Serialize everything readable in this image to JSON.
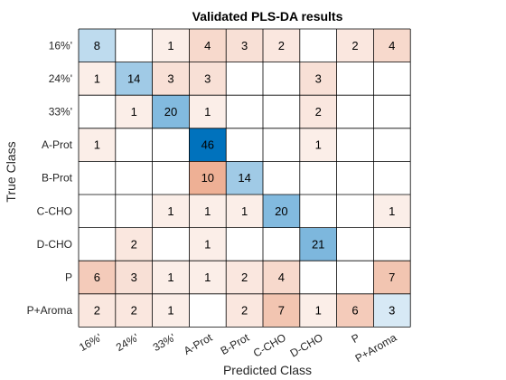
{
  "chart_data": {
    "type": "heatmap",
    "title": "Validated PLS-DA results",
    "xlabel": "Predicted Class",
    "ylabel": "True Class",
    "row_labels": [
      "16%'",
      "24%'",
      "33%'",
      "A-Prot",
      "B-Prot",
      "C-CHO",
      "D-CHO",
      "P",
      "P+Aroma"
    ],
    "col_labels": [
      "16%'",
      "24%'",
      "33%'",
      "A-Prot",
      "B-Prot",
      "C-CHO",
      "D-CHO",
      "P",
      "P+Aroma"
    ],
    "values": [
      [
        8,
        null,
        1,
        4,
        3,
        2,
        null,
        2,
        4
      ],
      [
        1,
        14,
        3,
        3,
        null,
        null,
        3,
        null,
        null
      ],
      [
        null,
        1,
        20,
        1,
        null,
        null,
        2,
        null,
        null
      ],
      [
        1,
        null,
        null,
        46,
        null,
        null,
        1,
        null,
        null
      ],
      [
        null,
        null,
        null,
        10,
        14,
        null,
        null,
        null,
        null
      ],
      [
        null,
        null,
        1,
        1,
        1,
        20,
        null,
        null,
        1
      ],
      [
        null,
        2,
        null,
        1,
        null,
        null,
        21,
        null,
        null
      ],
      [
        6,
        3,
        1,
        1,
        2,
        4,
        null,
        null,
        7
      ],
      [
        2,
        2,
        1,
        null,
        2,
        7,
        1,
        6,
        3
      ]
    ],
    "colors": {
      "diagonal_max": "#0072bd",
      "offdiag_max": "#d95319",
      "grid_line": "#000000",
      "background": "#ffffff"
    }
  }
}
